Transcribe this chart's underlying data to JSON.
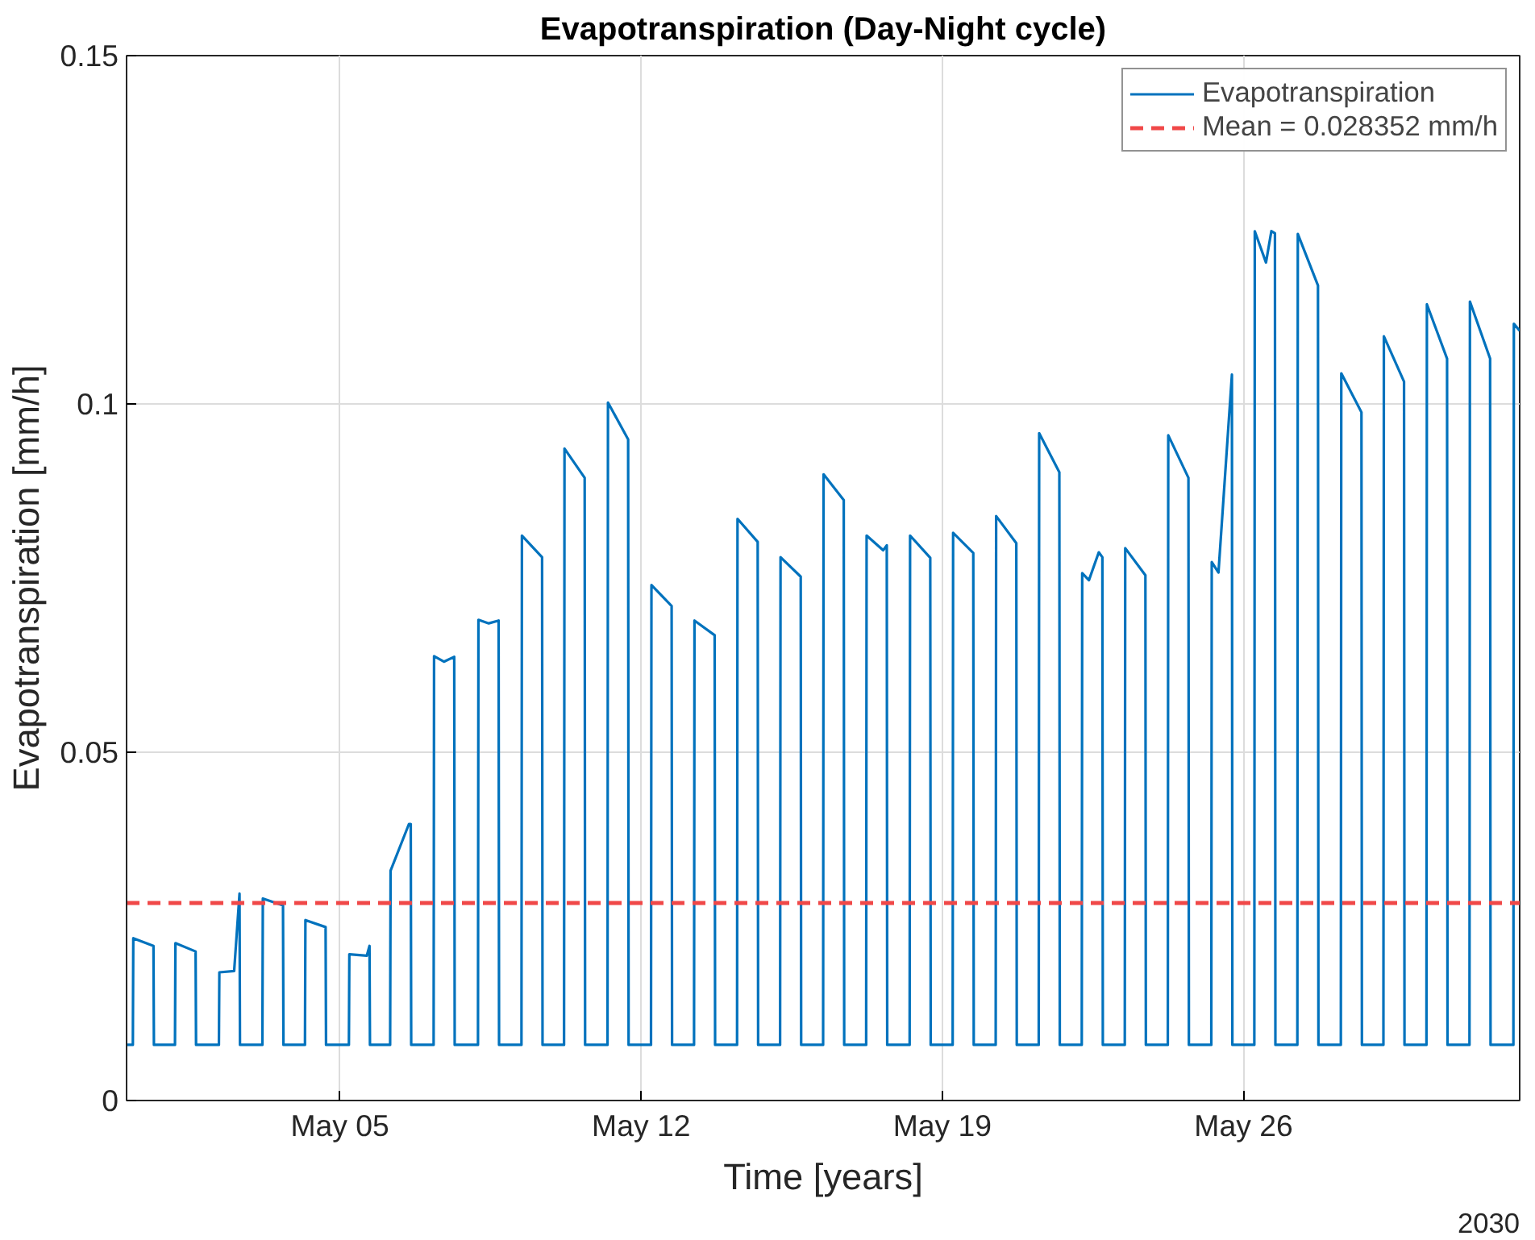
{
  "chart_data": {
    "type": "line",
    "title": "Evapotranspiration (Day-Night cycle)",
    "xlabel": "Time [years]",
    "ylabel": "Evapotranspiration [mm/h]",
    "annotations": [
      "2030"
    ],
    "xlim": [
      "2030-04-30T01:00",
      "2030-06-01T10:00"
    ],
    "ylim": [
      0,
      0.15
    ],
    "xticks": [
      {
        "value": "2030-05-05",
        "label": "May 05"
      },
      {
        "value": "2030-05-12",
        "label": "May 12"
      },
      {
        "value": "2030-05-19",
        "label": "May 19"
      },
      {
        "value": "2030-05-26",
        "label": "May 26"
      }
    ],
    "yticks": [
      0,
      0.05,
      0.1,
      0.15
    ],
    "grid": true,
    "legend": "top right",
    "marker": "none",
    "line_style": "solid",
    "series": [
      {
        "name": "Evapotranspiration",
        "color": "#0072bd",
        "x": [
          "2030-04-30T01:00",
          "2030-04-30T04:30",
          "2030-04-30T04:45",
          "2030-04-30T16:00",
          "2030-04-30T16:15",
          "2030-05-01T04:00",
          "2030-05-01T04:15",
          "2030-05-01T15:30",
          "2030-05-01T15:45",
          "2030-05-02T04:30",
          "2030-05-02T04:45",
          "2030-05-02T13:00",
          "2030-05-02T16:00",
          "2030-05-02T16:15",
          "2030-05-03T04:45",
          "2030-05-03T05:00",
          "2030-05-03T16:15",
          "2030-05-03T16:30",
          "2030-05-04T04:30",
          "2030-05-04T04:45",
          "2030-05-04T16:00",
          "2030-05-04T16:15",
          "2030-05-05T05:00",
          "2030-05-05T05:15",
          "2030-05-05T15:00",
          "2030-05-05T16:30",
          "2030-05-05T16:45",
          "2030-05-06T04:00",
          "2030-05-06T04:15",
          "2030-05-06T14:30",
          "2030-05-06T15:30",
          "2030-05-06T15:45",
          "2030-05-07T04:15",
          "2030-05-07T04:30",
          "2030-05-07T10:00",
          "2030-05-07T15:45",
          "2030-05-07T16:00",
          "2030-05-08T05:00",
          "2030-05-08T05:15",
          "2030-05-08T11:00",
          "2030-05-08T16:30",
          "2030-05-08T16:45",
          "2030-05-09T05:15",
          "2030-05-09T05:30",
          "2030-05-09T16:45",
          "2030-05-09T17:00",
          "2030-05-10T05:00",
          "2030-05-10T05:15",
          "2030-05-10T16:30",
          "2030-05-10T16:45",
          "2030-05-11T05:15",
          "2030-05-11T05:30",
          "2030-05-11T16:45",
          "2030-05-11T17:00",
          "2030-05-12T05:30",
          "2030-05-12T05:45",
          "2030-05-12T17:00",
          "2030-05-12T17:15",
          "2030-05-13T05:30",
          "2030-05-13T05:45",
          "2030-05-13T17:00",
          "2030-05-13T17:15",
          "2030-05-14T05:30",
          "2030-05-14T05:45",
          "2030-05-14T17:00",
          "2030-05-14T17:15",
          "2030-05-15T05:30",
          "2030-05-15T05:45",
          "2030-05-15T17:00",
          "2030-05-15T17:15",
          "2030-05-16T05:30",
          "2030-05-16T05:45",
          "2030-05-16T17:00",
          "2030-05-16T17:15",
          "2030-05-17T05:30",
          "2030-05-17T05:45",
          "2030-05-17T15:00",
          "2030-05-17T17:00",
          "2030-05-17T17:15",
          "2030-05-18T05:45",
          "2030-05-18T06:00",
          "2030-05-18T17:15",
          "2030-05-18T17:30",
          "2030-05-19T05:45",
          "2030-05-19T06:00",
          "2030-05-19T17:15",
          "2030-05-19T17:30",
          "2030-05-20T05:45",
          "2030-05-20T06:00",
          "2030-05-20T17:15",
          "2030-05-20T17:30",
          "2030-05-21T05:45",
          "2030-05-21T06:00",
          "2030-05-21T17:15",
          "2030-05-21T17:30",
          "2030-05-22T05:45",
          "2030-05-22T06:00",
          "2030-05-22T09:45",
          "2030-05-22T15:15",
          "2030-05-22T17:15",
          "2030-05-22T17:30",
          "2030-05-23T05:45",
          "2030-05-23T06:00",
          "2030-05-23T17:15",
          "2030-05-23T17:30",
          "2030-05-24T05:45",
          "2030-05-24T06:00",
          "2030-05-24T17:15",
          "2030-05-24T17:30",
          "2030-05-25T06:00",
          "2030-05-25T06:15",
          "2030-05-25T10:00",
          "2030-05-25T17:30",
          "2030-05-25T17:45",
          "2030-05-26T06:00",
          "2030-05-26T06:15",
          "2030-05-26T12:30",
          "2030-05-26T15:30",
          "2030-05-26T17:30",
          "2030-05-26T17:45",
          "2030-05-27T06:00",
          "2030-05-27T06:15",
          "2030-05-27T17:30",
          "2030-05-27T17:45",
          "2030-05-28T06:15",
          "2030-05-28T06:30",
          "2030-05-28T17:45",
          "2030-05-28T18:00",
          "2030-05-29T06:00",
          "2030-05-29T06:15",
          "2030-05-29T17:30",
          "2030-05-29T17:45",
          "2030-05-30T06:00",
          "2030-05-30T06:15",
          "2030-05-30T17:30",
          "2030-05-30T17:45",
          "2030-05-31T06:00",
          "2030-05-31T06:15",
          "2030-05-31T17:30",
          "2030-05-31T17:45",
          "2030-06-01T06:30",
          "2030-06-01T06:45",
          "2030-06-01T10:00"
        ],
        "values": [
          0.008,
          0.008,
          0.0233,
          0.0222,
          0.008,
          0.008,
          0.0226,
          0.0214,
          0.008,
          0.008,
          0.0184,
          0.0186,
          0.0297,
          0.008,
          0.008,
          0.029,
          0.028,
          0.008,
          0.008,
          0.0259,
          0.0249,
          0.008,
          0.008,
          0.021,
          0.0208,
          0.0222,
          0.008,
          0.008,
          0.033,
          0.0397,
          0.0397,
          0.008,
          0.008,
          0.0638,
          0.063,
          0.0637,
          0.008,
          0.008,
          0.069,
          0.0685,
          0.0689,
          0.008,
          0.008,
          0.0811,
          0.078,
          0.008,
          0.008,
          0.0936,
          0.0894,
          0.008,
          0.008,
          0.1002,
          0.0949,
          0.008,
          0.008,
          0.074,
          0.071,
          0.008,
          0.008,
          0.0689,
          0.0668,
          0.008,
          0.008,
          0.0835,
          0.0802,
          0.008,
          0.008,
          0.078,
          0.0752,
          0.008,
          0.008,
          0.0899,
          0.0862,
          0.008,
          0.008,
          0.0811,
          0.079,
          0.0797,
          0.008,
          0.008,
          0.0811,
          0.0779,
          0.008,
          0.008,
          0.0815,
          0.0786,
          0.008,
          0.008,
          0.0839,
          0.08,
          0.008,
          0.008,
          0.0958,
          0.0902,
          0.008,
          0.008,
          0.0757,
          0.0747,
          0.0787,
          0.078,
          0.008,
          0.008,
          0.0793,
          0.0754,
          0.008,
          0.008,
          0.0955,
          0.0894,
          0.008,
          0.008,
          0.0773,
          0.0758,
          0.1042,
          0.008,
          0.008,
          0.1248,
          0.1203,
          0.1248,
          0.1245,
          0.008,
          0.008,
          0.1244,
          0.117,
          0.008,
          0.008,
          0.1044,
          0.0988,
          0.008,
          0.008,
          0.1097,
          0.1032,
          0.008,
          0.008,
          0.1143,
          0.1065,
          0.008,
          0.008,
          0.1147,
          0.1065,
          0.008,
          0.008,
          0.1115,
          0.1105
        ]
      }
    ],
    "ref_lines": [
      {
        "axis": "y",
        "value": 0.028352,
        "label": "Mean = 0.028352 mm/h",
        "color": "#f04848",
        "line_style": "dashed"
      }
    ]
  }
}
